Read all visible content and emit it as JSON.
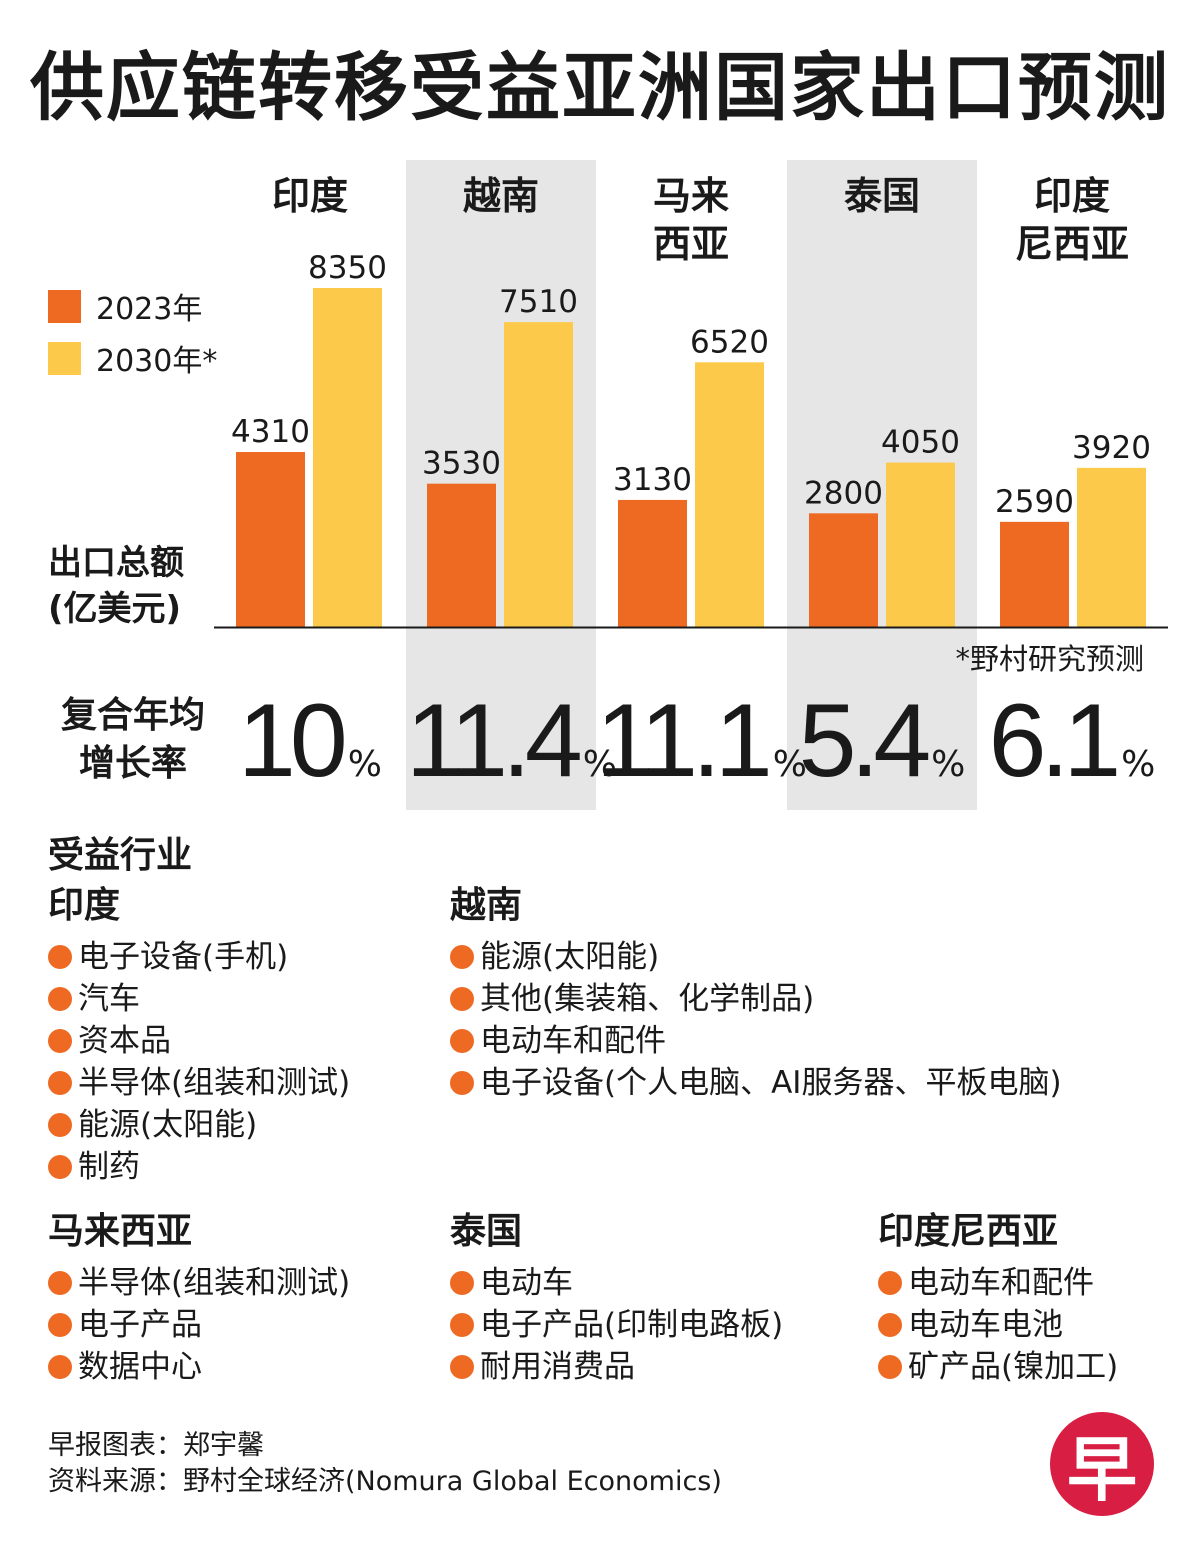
{
  "title": "供应链转移受益亚洲国家出口预测",
  "chart_data": {
    "type": "bar",
    "categories": [
      "印度",
      "越南",
      "马来\n西亚",
      "泰国",
      "印度\n尼西亚"
    ],
    "series": [
      {
        "name": "2023年",
        "values": [
          4310,
          3530,
          3130,
          2800,
          2590
        ],
        "color": "#ee6a23"
      },
      {
        "name": "2030年*",
        "values": [
          8350,
          7510,
          6520,
          4050,
          3920
        ],
        "color": "#fcc94a"
      }
    ],
    "ylabel": "出口总额\n(亿美元)",
    "ylim": [
      0,
      8350
    ],
    "grid": false,
    "legend": "top-left",
    "footnote": "*野村研究预测"
  },
  "cagr": {
    "label": "复合年均\n增长率",
    "values": [
      "10",
      "11.4",
      "11.1",
      "5.4",
      "6.1"
    ],
    "unit": "%"
  },
  "industries": {
    "section_title": "受益行业",
    "groups": [
      {
        "country": "印度",
        "items": [
          "电子设备(手机)",
          "汽车",
          "资本品",
          "半导体(组装和测试)",
          "能源(太阳能)",
          "制药"
        ]
      },
      {
        "country": "越南",
        "items": [
          "能源(太阳能)",
          "其他(集装箱、化学制品)",
          "电动车和配件",
          "电子设备(个人电脑、AI服务器、平板电脑)"
        ]
      },
      {
        "country": "马来西亚",
        "items": [
          "半导体(组装和测试)",
          "电子产品",
          "数据中心"
        ]
      },
      {
        "country": "泰国",
        "items": [
          "电动车",
          "电子产品(印制电路板)",
          "耐用消费品"
        ]
      },
      {
        "country": "印度尼西亚",
        "items": [
          "电动车和配件",
          "电动车电池",
          "矿产品(镍加工)"
        ]
      }
    ]
  },
  "credits": {
    "chart_by": "早报图表：郑宇馨",
    "source": "资料来源：野村全球经济(Nomura Global Economics)"
  },
  "logo": {
    "text": "早",
    "color": "#d91e43"
  }
}
